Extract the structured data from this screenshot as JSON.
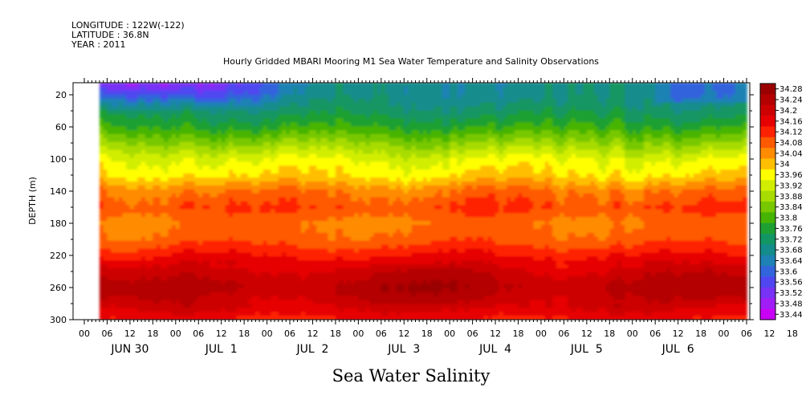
{
  "header": {
    "longitude": "LONGITUDE : 122W(-122)",
    "latitude": "LATITUDE : 36.8N",
    "year": "YEAR : 2011",
    "title": "Hourly Gridded MBARI Mooring M1 Sea Water Temperature and Salinity Observations"
  },
  "chart_data": {
    "type": "heatmap",
    "title": "Hourly Gridded MBARI Mooring M1 Sea Water Temperature and Salinity Observations",
    "xlabel": "",
    "ylabel": "DEPTH (m)",
    "variable_label": "Sea Water Salinity",
    "ylim": [
      300,
      5
    ],
    "y_ticks": [
      20,
      60,
      100,
      140,
      180,
      220,
      260,
      300
    ],
    "x_hour_ticks": [
      "00",
      "06",
      "12",
      "18",
      "00",
      "06",
      "12",
      "18",
      "00",
      "06",
      "12",
      "18",
      "00",
      "06",
      "12",
      "18",
      "00",
      "06",
      "12",
      "18",
      "00",
      "06",
      "12",
      "18",
      "00",
      "06",
      "12",
      "18",
      "00",
      "06",
      "12",
      "18"
    ],
    "x_day_labels": [
      "JUN 30",
      "JUL  1",
      "JUL  2",
      "JUL  3",
      "JUL  4",
      "JUL  5",
      "JUL  6"
    ],
    "data_start": "JUN 30 04:00",
    "colorbar_levels": [
      "34.28",
      "34.24",
      "34.2",
      "34.16",
      "34.12",
      "34.08",
      "34.04",
      "34",
      "33.96",
      "33.92",
      "33.88",
      "33.84",
      "33.8",
      "33.76",
      "33.72",
      "33.68",
      "33.64",
      "33.6",
      "33.56",
      "33.52",
      "33.48",
      "33.44"
    ],
    "colorbar_colors": [
      "#9b0000",
      "#b40000",
      "#cd0000",
      "#e60000",
      "#ff2200",
      "#ff5a00",
      "#ff8c00",
      "#ffbf00",
      "#ffff00",
      "#d2ee00",
      "#a8dc00",
      "#78c800",
      "#46b400",
      "#1ea032",
      "#129664",
      "#148c8c",
      "#1e82b4",
      "#3264dc",
      "#5046f0",
      "#7832f5",
      "#a01ef5",
      "#c800f5"
    ],
    "depth_profile": [
      {
        "depth": 5,
        "salinity": 33.7
      },
      {
        "depth": 20,
        "salinity": 33.7
      },
      {
        "depth": 40,
        "salinity": 33.74
      },
      {
        "depth": 60,
        "salinity": 33.8
      },
      {
        "depth": 80,
        "salinity": 33.88
      },
      {
        "depth": 100,
        "salinity": 33.96
      },
      {
        "depth": 120,
        "salinity": 34.0
      },
      {
        "depth": 140,
        "salinity": 34.08
      },
      {
        "depth": 160,
        "salinity": 34.12
      },
      {
        "depth": 180,
        "salinity": 34.08
      },
      {
        "depth": 200,
        "salinity": 34.1
      },
      {
        "depth": 220,
        "salinity": 34.16
      },
      {
        "depth": 240,
        "salinity": 34.22
      },
      {
        "depth": 260,
        "salinity": 34.26
      },
      {
        "depth": 280,
        "salinity": 34.22
      },
      {
        "depth": 300,
        "salinity": 34.16
      }
    ]
  }
}
